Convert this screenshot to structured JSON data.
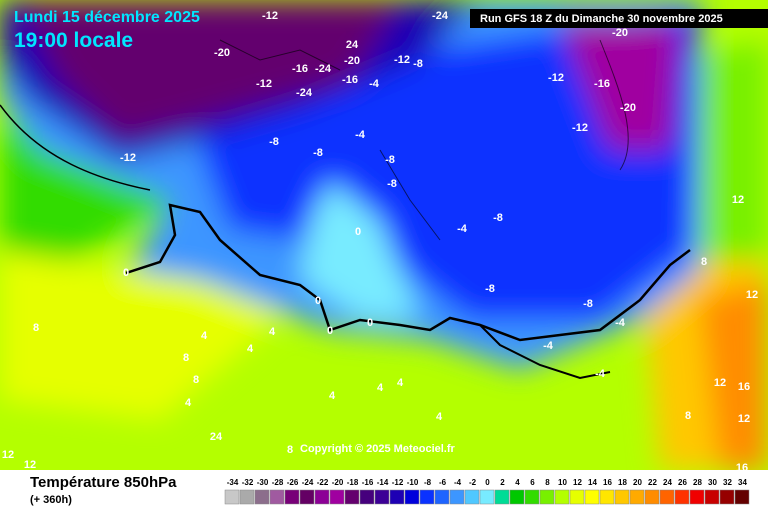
{
  "header": {
    "date": "Lundi 15 décembre 2025",
    "time": "19:00 locale",
    "run": "Run GFS 18 Z du Dimanche 30 novembre 2025"
  },
  "footer": {
    "parameter": "Température 850hPa",
    "lead": "(+ 360h)",
    "copyright": "Copyright © 2025 Meteociel.fr"
  },
  "scale": {
    "ticks": [
      -34,
      -32,
      -30,
      -28,
      -26,
      -24,
      -22,
      -20,
      -18,
      -16,
      -14,
      -12,
      -10,
      -8,
      -6,
      -4,
      -2,
      0,
      2,
      4,
      6,
      8,
      10,
      12,
      14,
      16,
      18,
      20,
      22,
      24,
      26,
      28,
      30,
      32,
      34
    ],
    "colors": [
      "#c8c8c8",
      "#aaaaaa",
      "#8c6e8c",
      "#a05aa0",
      "#780078",
      "#640064",
      "#8c0096",
      "#a000a0",
      "#64006e",
      "#46007d",
      "#3c0096",
      "#1e00b4",
      "#0000dc",
      "#0a32ff",
      "#1e64ff",
      "#3c96ff",
      "#50c8ff",
      "#78ebff",
      "#00dc96",
      "#00c800",
      "#32dc00",
      "#78f000",
      "#b4ff00",
      "#e6ff00",
      "#ffff00",
      "#ffe600",
      "#ffc800",
      "#ffaa00",
      "#ff8c00",
      "#ff6400",
      "#ff3200",
      "#f00000",
      "#c80000",
      "#960000",
      "#640000"
    ]
  },
  "contour_labels": [
    "-20",
    "-12",
    "-12",
    "-12",
    "-16",
    "-24",
    "-24",
    "24",
    "-20",
    "-16",
    "-12",
    "-8",
    "-24",
    "-20",
    "-12",
    "-16",
    "-20",
    "-12",
    "-8",
    "-8",
    "-4",
    "-4",
    "-8",
    "-4",
    "-8",
    "-8",
    "-8",
    "-8",
    "-4",
    "0",
    "0",
    "0",
    "0",
    "0",
    "-4",
    "-4",
    "4",
    "4",
    "4",
    "8",
    "8",
    "8",
    "4",
    "4",
    "4",
    "12",
    "16",
    "12",
    "8",
    "12",
    "8",
    "12",
    "16",
    "12",
    "12",
    "24",
    "4",
    "8",
    "4"
  ]
}
